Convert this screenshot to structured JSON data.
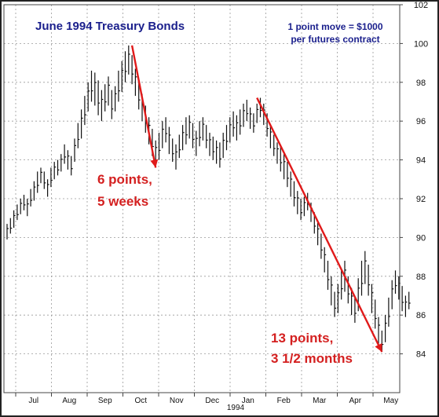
{
  "chart_data": {
    "type": "bar",
    "style": "ohlc-high-low",
    "title": "June 1994 Treasury Bonds",
    "subtitle_line1": "1 point move = $1000",
    "subtitle_line2": "per futures contract",
    "year_label": "1994",
    "ylim": [
      82,
      102
    ],
    "yticks": [
      84,
      86,
      88,
      90,
      92,
      94,
      96,
      98,
      100,
      102
    ],
    "y_axis_side": "right",
    "grid": true,
    "months": [
      "Jul",
      "Aug",
      "Sep",
      "Oct",
      "Nov",
      "Dec",
      "Jan",
      "Feb",
      "Mar",
      "Apr",
      "May"
    ],
    "series_high_low": [
      [
        89.9,
        90.7
      ],
      [
        90.2,
        91.0
      ],
      [
        90.5,
        91.4
      ],
      [
        90.9,
        91.7
      ],
      [
        91.2,
        92.0
      ],
      [
        91.4,
        92.2
      ],
      [
        91.1,
        92.0
      ],
      [
        91.6,
        92.5
      ],
      [
        91.9,
        92.9
      ],
      [
        92.3,
        93.4
      ],
      [
        92.8,
        93.6
      ],
      [
        92.5,
        93.4
      ],
      [
        92.1,
        93.0
      ],
      [
        92.6,
        93.6
      ],
      [
        93.0,
        93.9
      ],
      [
        93.2,
        94.0
      ],
      [
        93.4,
        94.3
      ],
      [
        93.8,
        94.8
      ],
      [
        93.5,
        94.5
      ],
      [
        93.2,
        94.2
      ],
      [
        93.9,
        95.1
      ],
      [
        94.6,
        95.9
      ],
      [
        95.1,
        96.6
      ],
      [
        95.8,
        97.3
      ],
      [
        96.5,
        98.0
      ],
      [
        97.0,
        98.6
      ],
      [
        96.8,
        98.5
      ],
      [
        96.3,
        98.1
      ],
      [
        96.0,
        97.6
      ],
      [
        96.5,
        97.9
      ],
      [
        96.8,
        98.3
      ],
      [
        96.1,
        97.6
      ],
      [
        96.5,
        97.8
      ],
      [
        97.0,
        98.6
      ],
      [
        97.5,
        99.1
      ],
      [
        98.0,
        99.6
      ],
      [
        98.4,
        99.9
      ],
      [
        97.9,
        99.4
      ],
      [
        97.3,
        98.7
      ],
      [
        96.6,
        98.0
      ],
      [
        96.0,
        97.4
      ],
      [
        95.4,
        96.8
      ],
      [
        94.8,
        96.2
      ],
      [
        94.2,
        95.6
      ],
      [
        93.8,
        95.0
      ],
      [
        94.0,
        95.4
      ],
      [
        94.6,
        96.0
      ],
      [
        94.9,
        96.2
      ],
      [
        94.3,
        95.7
      ],
      [
        93.9,
        95.1
      ],
      [
        93.5,
        94.8
      ],
      [
        94.1,
        95.3
      ],
      [
        94.5,
        95.8
      ],
      [
        94.8,
        96.2
      ],
      [
        95.1,
        96.3
      ],
      [
        94.6,
        95.9
      ],
      [
        94.2,
        95.5
      ],
      [
        94.7,
        96.0
      ],
      [
        95.0,
        96.2
      ],
      [
        94.6,
        95.8
      ],
      [
        94.2,
        95.4
      ],
      [
        94.0,
        95.2
      ],
      [
        93.8,
        95.0
      ],
      [
        93.6,
        94.9
      ],
      [
        94.1,
        95.4
      ],
      [
        94.5,
        95.8
      ],
      [
        94.9,
        96.2
      ],
      [
        95.2,
        96.5
      ],
      [
        95.0,
        96.3
      ],
      [
        95.3,
        96.6
      ],
      [
        95.7,
        96.9
      ],
      [
        96.0,
        97.1
      ],
      [
        95.6,
        96.7
      ],
      [
        95.4,
        96.4
      ],
      [
        95.9,
        96.9
      ],
      [
        96.2,
        97.2
      ],
      [
        95.8,
        96.9
      ],
      [
        95.2,
        96.4
      ],
      [
        94.6,
        95.8
      ],
      [
        94.2,
        95.3
      ],
      [
        93.8,
        94.9
      ],
      [
        93.4,
        94.7
      ],
      [
        93.0,
        94.3
      ],
      [
        92.6,
        93.9
      ],
      [
        92.1,
        93.4
      ],
      [
        91.6,
        92.9
      ],
      [
        91.2,
        92.4
      ],
      [
        90.9,
        92.0
      ],
      [
        91.1,
        92.1
      ],
      [
        91.4,
        92.3
      ],
      [
        90.8,
        91.8
      ],
      [
        90.2,
        91.3
      ],
      [
        89.6,
        90.8
      ],
      [
        88.9,
        90.2
      ],
      [
        88.2,
        89.5
      ],
      [
        87.3,
        88.8
      ],
      [
        86.5,
        88.0
      ],
      [
        85.9,
        87.2
      ],
      [
        86.1,
        87.6
      ],
      [
        86.8,
        88.4
      ],
      [
        87.2,
        88.8
      ],
      [
        86.6,
        88.0
      ],
      [
        86.0,
        87.4
      ],
      [
        85.6,
        87.0
      ],
      [
        86.2,
        87.9
      ],
      [
        87.0,
        88.8
      ],
      [
        87.6,
        89.3
      ],
      [
        87.0,
        88.6
      ],
      [
        86.1,
        87.6
      ],
      [
        85.3,
        86.8
      ],
      [
        84.5,
        85.9
      ],
      [
        84.1,
        85.2
      ],
      [
        84.6,
        86.0
      ],
      [
        85.4,
        86.9
      ],
      [
        86.3,
        87.8
      ],
      [
        87.1,
        88.3
      ],
      [
        86.8,
        88.0
      ],
      [
        86.2,
        87.5
      ],
      [
        85.9,
        87.0
      ],
      [
        86.3,
        87.2
      ]
    ],
    "annotations": [
      {
        "line1": "6 points,",
        "line2": "5 weeks",
        "from": [
          37,
          99.9
        ],
        "to": [
          44,
          93.6
        ]
      },
      {
        "line1": "13 points,",
        "line2": "3 1/2 months",
        "from": [
          74,
          97.2
        ],
        "to": [
          111,
          84.1
        ]
      }
    ]
  }
}
